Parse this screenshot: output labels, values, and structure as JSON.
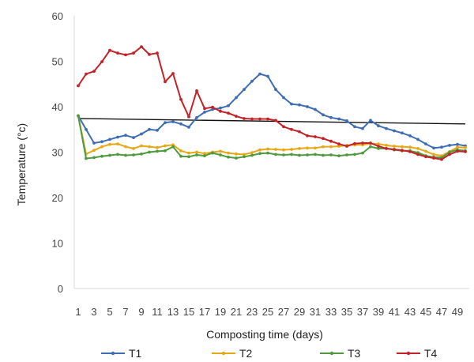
{
  "chart_data": {
    "type": "line",
    "title": "",
    "xlabel": "Composting time (days)",
    "ylabel": "Temperature (°c)",
    "ylim": [
      0,
      60
    ],
    "yticks": [
      0,
      10,
      20,
      30,
      40,
      50,
      60
    ],
    "x_tick_labels": [
      "1",
      "3",
      "5",
      "7",
      "9",
      "11",
      "13",
      "15",
      "17",
      "19",
      "21",
      "23",
      "25",
      "27",
      "29",
      "31",
      "33",
      "35",
      "37",
      "39",
      "41",
      "43",
      "45",
      "47",
      "49"
    ],
    "x": [
      1,
      2,
      3,
      4,
      5,
      6,
      7,
      8,
      9,
      10,
      11,
      12,
      13,
      14,
      15,
      16,
      17,
      18,
      19,
      20,
      21,
      22,
      23,
      24,
      25,
      26,
      27,
      28,
      29,
      30,
      31,
      32,
      33,
      34,
      35,
      36,
      37,
      38,
      39,
      40,
      41,
      42,
      43,
      44,
      45,
      46,
      47,
      48,
      49,
      50
    ],
    "grid": false,
    "legend_position": "bottom",
    "series": [
      {
        "name": "T1",
        "color": "#3f6db5",
        "values": [
          38,
          35,
          32,
          32.3,
          32.8,
          33.3,
          33.7,
          33.2,
          34,
          35,
          34.8,
          36.5,
          36.7,
          36.2,
          35.5,
          37.6,
          38.8,
          39.4,
          39.7,
          40.2,
          42,
          43.8,
          45.6,
          47.2,
          46.7,
          43.8,
          42,
          40.6,
          40.4,
          40,
          39.4,
          38.2,
          37.6,
          37.3,
          36.9,
          35.6,
          35.2,
          37,
          35.8,
          35.2,
          34.7,
          34.2,
          33.6,
          32.8,
          31.8,
          30.9,
          31.1,
          31.5,
          31.7,
          31.4
        ]
      },
      {
        "name": "T2",
        "color": "#e6a817",
        "values": [
          38,
          29.6,
          30.4,
          31.2,
          31.7,
          31.8,
          31.2,
          30.8,
          31.4,
          31.2,
          31,
          31.4,
          31.6,
          30.3,
          29.8,
          30,
          29.7,
          30,
          30.2,
          29.8,
          29.6,
          29.5,
          29.9,
          30.5,
          30.7,
          30.6,
          30.5,
          30.6,
          30.8,
          30.9,
          30.9,
          31.2,
          31.2,
          31.3,
          31.5,
          31.6,
          31.6,
          31.9,
          31.8,
          31.5,
          31.3,
          31.2,
          31.1,
          30.8,
          30.2,
          29.5,
          29.2,
          30.1,
          31.1,
          31
        ]
      },
      {
        "name": "T3",
        "color": "#4e9a3c",
        "values": [
          38,
          28.6,
          28.8,
          29.1,
          29.3,
          29.5,
          29.3,
          29.4,
          29.6,
          30,
          30.2,
          30.3,
          31.2,
          29.1,
          29,
          29.4,
          29.2,
          29.8,
          29.4,
          28.9,
          28.7,
          29,
          29.3,
          29.7,
          29.8,
          29.5,
          29.4,
          29.5,
          29.3,
          29.4,
          29.5,
          29.3,
          29.4,
          29.2,
          29.4,
          29.5,
          29.8,
          31.2,
          30.8,
          30.8,
          30.5,
          30.3,
          30.3,
          29.9,
          29.2,
          28.9,
          28.8,
          30,
          30.5,
          30.3
        ]
      },
      {
        "name": "T4",
        "color": "#c42128",
        "values": [
          44.6,
          47.2,
          47.8,
          49.9,
          52.4,
          51.8,
          51.4,
          51.8,
          53.2,
          51.5,
          51.8,
          45.5,
          47.3,
          41.6,
          37.8,
          43.5,
          39.6,
          39.9,
          39,
          38.6,
          37.9,
          37.4,
          37.3,
          37.3,
          37.3,
          37,
          35.6,
          35,
          34.5,
          33.6,
          33.4,
          33,
          32.4,
          31.8,
          31.3,
          31.9,
          32,
          32,
          31.3,
          30.8,
          30.6,
          30.4,
          30.1,
          29.5,
          29,
          28.7,
          28.4,
          29.5,
          30.2,
          30.1
        ]
      }
    ],
    "trendline": {
      "color": "#111111",
      "values": [
        37.4,
        36.2
      ]
    }
  }
}
